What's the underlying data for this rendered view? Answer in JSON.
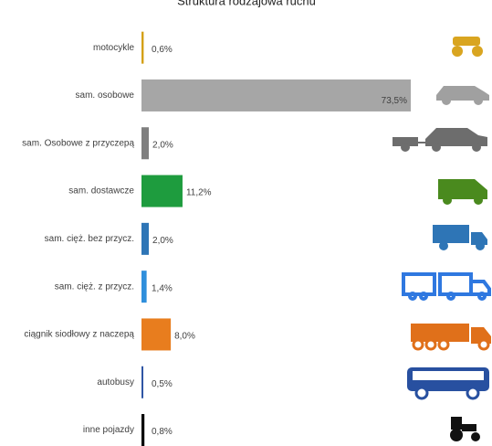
{
  "chart_data": {
    "type": "bar",
    "orientation": "horizontal",
    "title": "Struktura rodzajowa ruchu",
    "categories": [
      "motocykle",
      "sam. osobowe",
      "sam. Osobowe z przyczepą",
      "sam. dostawcze",
      "sam. cięż. bez przycz.",
      "sam. cięż. z przycz.",
      "ciągnik siodłowy z naczepą",
      "autobusy",
      "inne pojazdy"
    ],
    "values": [
      0.6,
      73.5,
      2.0,
      11.2,
      2.0,
      1.4,
      8.0,
      0.5,
      0.8
    ],
    "value_labels": [
      "0,6%",
      "73,5%",
      "2,0%",
      "11,2%",
      "2,0%",
      "1,4%",
      "8,0%",
      "0,5%",
      "0,8%"
    ],
    "colors": [
      "#d4a017",
      "#a6a6a6",
      "#7f7f7f",
      "#1e9c3e",
      "#2e75b6",
      "#2f8fdc",
      "#e87d1e",
      "#2f55a4",
      "#000000"
    ]
  }
}
